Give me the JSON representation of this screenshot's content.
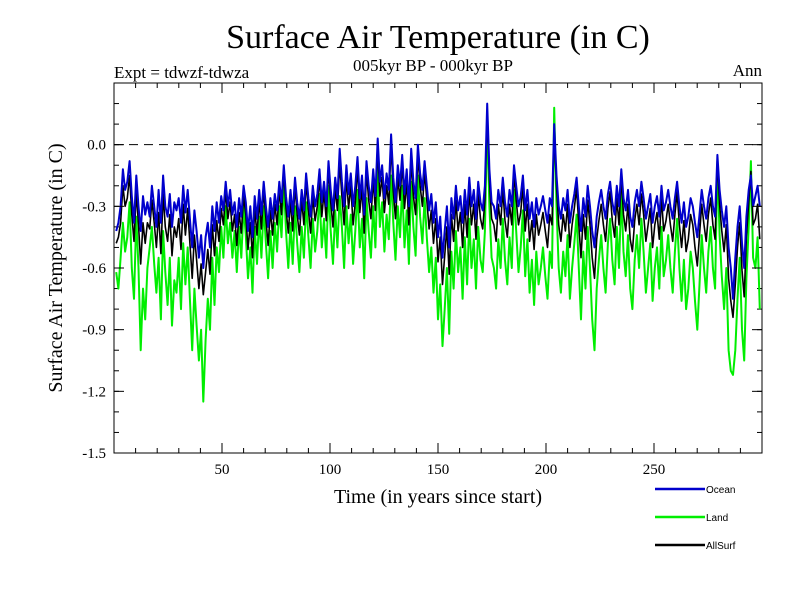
{
  "chart_data": {
    "type": "line",
    "title": "Surface Air Temperature (in C)",
    "subtitle": "005kyr BP - 000kyr BP",
    "left_label": "Expt = tdwzf-tdwza",
    "right_label": "Ann",
    "xlabel": "Time (in years since start)",
    "ylabel": "Surface Air Temperature (in C)",
    "xlim": [
      0,
      300
    ],
    "ylim": [
      -1.5,
      0.3
    ],
    "xticks": [
      50,
      100,
      150,
      200,
      250
    ],
    "yticks": [
      -1.5,
      -1.2,
      -0.9,
      -0.6,
      -0.3,
      0.0
    ],
    "ytick_labels": [
      "-1.5",
      "-1.2",
      "-0.9",
      "-0.6",
      "-0.3",
      "0.0"
    ],
    "reference_line": 0.0,
    "series": [
      {
        "name": "Ocean",
        "color": "#0000cc",
        "values": [
          -0.42,
          -0.38,
          -0.3,
          -0.12,
          -0.22,
          -0.18,
          -0.08,
          -0.25,
          -0.38,
          -0.15,
          -0.3,
          -0.42,
          -0.25,
          -0.34,
          -0.28,
          -0.35,
          -0.2,
          -0.3,
          -0.4,
          -0.22,
          -0.38,
          -0.15,
          -0.3,
          -0.35,
          -0.24,
          -0.4,
          -0.28,
          -0.32,
          -0.26,
          -0.38,
          -0.2,
          -0.33,
          -0.22,
          -0.36,
          -0.5,
          -0.32,
          -0.42,
          -0.55,
          -0.44,
          -0.6,
          -0.45,
          -0.38,
          -0.5,
          -0.3,
          -0.42,
          -0.28,
          -0.38,
          -0.25,
          -0.32,
          -0.18,
          -0.3,
          -0.22,
          -0.34,
          -0.28,
          -0.4,
          -0.26,
          -0.35,
          -0.2,
          -0.28,
          -0.42,
          -0.3,
          -0.45,
          -0.25,
          -0.36,
          -0.22,
          -0.34,
          -0.18,
          -0.3,
          -0.4,
          -0.26,
          -0.36,
          -0.24,
          -0.32,
          -0.18,
          -0.28,
          -0.1,
          -0.25,
          -0.35,
          -0.22,
          -0.34,
          -0.16,
          -0.28,
          -0.36,
          -0.22,
          -0.32,
          -0.14,
          -0.26,
          -0.35,
          -0.2,
          -0.3,
          -0.24,
          -0.12,
          -0.28,
          -0.18,
          -0.3,
          -0.08,
          -0.22,
          -0.32,
          -0.16,
          -0.26,
          -0.02,
          -0.18,
          -0.3,
          -0.1,
          -0.24,
          -0.14,
          -0.3,
          -0.2,
          -0.06,
          -0.26,
          -0.15,
          -0.34,
          -0.08,
          -0.2,
          -0.28,
          -0.12,
          -0.25,
          0.03,
          -0.18,
          -0.1,
          -0.26,
          -0.14,
          -0.22,
          0.05,
          -0.16,
          -0.28,
          -0.1,
          -0.2,
          -0.05,
          -0.24,
          -0.12,
          -0.3,
          -0.02,
          -0.18,
          -0.26,
          0.0,
          -0.14,
          -0.22,
          -0.08,
          -0.2,
          -0.32,
          -0.24,
          -0.38,
          -0.28,
          -0.45,
          -0.35,
          -0.55,
          -0.42,
          -0.3,
          -0.5,
          -0.26,
          -0.36,
          -0.2,
          -0.32,
          -0.25,
          -0.38,
          -0.22,
          -0.34,
          -0.16,
          -0.3,
          -0.22,
          -0.36,
          -0.18,
          -0.28,
          -0.32,
          -0.2,
          0.2,
          -0.12,
          -0.28,
          -0.3,
          -0.36,
          -0.22,
          -0.3,
          -0.16,
          -0.28,
          -0.35,
          -0.22,
          -0.3,
          -0.1,
          -0.2,
          -0.3,
          -0.25,
          -0.15,
          -0.32,
          -0.22,
          -0.36,
          -0.28,
          -0.4,
          -0.26,
          -0.34,
          -0.3,
          -0.25,
          -0.32,
          -0.38,
          -0.26,
          -0.3,
          0.1,
          -0.15,
          -0.3,
          -0.36,
          -0.26,
          -0.32,
          -0.22,
          -0.38,
          -0.3,
          -0.24,
          -0.16,
          -0.3,
          -0.42,
          -0.26,
          -0.35,
          -0.2,
          -0.3,
          -0.42,
          -0.5,
          -0.35,
          -0.28,
          -0.22,
          -0.3,
          -0.36,
          -0.24,
          -0.18,
          -0.28,
          -0.34,
          -0.2,
          -0.3,
          -0.12,
          -0.26,
          -0.32,
          -0.22,
          -0.35,
          -0.4,
          -0.28,
          -0.22,
          -0.3,
          -0.18,
          -0.26,
          -0.36,
          -0.3,
          -0.24,
          -0.38,
          -0.3,
          -0.25,
          -0.35,
          -0.2,
          -0.32,
          -0.28,
          -0.22,
          -0.3,
          -0.36,
          -0.26,
          -0.18,
          -0.3,
          -0.38,
          -0.28,
          -0.4,
          -0.35,
          -0.26,
          -0.3,
          -0.38,
          -0.45,
          -0.34,
          -0.22,
          -0.3,
          -0.36,
          -0.26,
          -0.2,
          -0.3,
          -0.35,
          -0.05,
          -0.22,
          -0.32,
          -0.4,
          -0.3,
          -0.5,
          -0.6,
          -0.75,
          -0.55,
          -0.4,
          -0.3,
          -0.48,
          -0.6,
          -0.35,
          -0.22,
          -0.15,
          -0.3,
          -0.25,
          -0.2,
          -0.3
        ]
      },
      {
        "name": "Land",
        "color": "#00ee00",
        "values": [
          -0.62,
          -0.7,
          -0.55,
          -0.38,
          -0.52,
          -0.45,
          -0.28,
          -0.6,
          -0.75,
          -0.35,
          -0.6,
          -1.0,
          -0.7,
          -0.85,
          -0.6,
          -0.5,
          -0.4,
          -0.58,
          -0.72,
          -0.55,
          -0.85,
          -0.42,
          -0.62,
          -0.78,
          -0.55,
          -0.88,
          -0.66,
          -0.72,
          -0.55,
          -0.8,
          -0.48,
          -0.68,
          -0.5,
          -0.75,
          -1.0,
          -0.7,
          -0.88,
          -1.05,
          -0.9,
          -1.25,
          -0.95,
          -0.75,
          -0.9,
          -0.55,
          -0.78,
          -0.5,
          -0.62,
          -0.4,
          -0.55,
          -0.3,
          -0.48,
          -0.38,
          -0.55,
          -0.42,
          -0.62,
          -0.4,
          -0.55,
          -0.3,
          -0.44,
          -0.65,
          -0.5,
          -0.72,
          -0.4,
          -0.58,
          -0.35,
          -0.55,
          -0.3,
          -0.48,
          -0.65,
          -0.42,
          -0.6,
          -0.38,
          -0.52,
          -0.3,
          -0.45,
          -0.18,
          -0.42,
          -0.6,
          -0.38,
          -0.58,
          -0.3,
          -0.48,
          -0.62,
          -0.4,
          -0.55,
          -0.28,
          -0.45,
          -0.6,
          -0.36,
          -0.52,
          -0.42,
          -0.24,
          -0.5,
          -0.36,
          -0.55,
          -0.2,
          -0.42,
          -0.58,
          -0.32,
          -0.5,
          -0.25,
          -0.4,
          -0.6,
          -0.3,
          -0.48,
          -0.34,
          -0.58,
          -0.42,
          -0.22,
          -0.5,
          -0.36,
          -0.65,
          -0.26,
          -0.42,
          -0.55,
          -0.3,
          -0.5,
          -0.12,
          -0.4,
          -0.28,
          -0.52,
          -0.34,
          -0.46,
          -0.15,
          -0.38,
          -0.56,
          -0.3,
          -0.45,
          -0.2,
          -0.5,
          -0.32,
          -0.58,
          -0.18,
          -0.4,
          -0.54,
          -0.15,
          -0.35,
          -0.48,
          -0.26,
          -0.45,
          -0.62,
          -0.5,
          -0.72,
          -0.55,
          -0.85,
          -0.68,
          -0.98,
          -0.8,
          -0.6,
          -0.92,
          -0.52,
          -0.7,
          -0.42,
          -0.62,
          -0.5,
          -0.75,
          -0.45,
          -0.68,
          -0.36,
          -0.6,
          -0.46,
          -0.7,
          -0.4,
          -0.56,
          -0.62,
          -0.42,
          0.12,
          -0.3,
          -0.55,
          -0.6,
          -0.7,
          -0.46,
          -0.6,
          -0.36,
          -0.56,
          -0.68,
          -0.45,
          -0.6,
          -0.22,
          -0.42,
          -0.62,
          -0.5,
          -0.32,
          -0.64,
          -0.46,
          -0.72,
          -0.56,
          -0.78,
          -0.52,
          -0.68,
          -0.6,
          -0.5,
          -0.64,
          -0.75,
          -0.52,
          -0.6,
          0.18,
          -0.3,
          -0.6,
          -0.72,
          -0.52,
          -0.64,
          -0.44,
          -0.75,
          -0.6,
          -0.48,
          -0.34,
          -0.6,
          -0.85,
          -0.52,
          -0.7,
          -0.4,
          -0.6,
          -0.85,
          -1.0,
          -0.7,
          -0.56,
          -0.44,
          -0.6,
          -0.72,
          -0.48,
          -0.36,
          -0.56,
          -0.68,
          -0.4,
          -0.6,
          -0.24,
          -0.52,
          -0.64,
          -0.44,
          -0.7,
          -0.8,
          -0.56,
          -0.44,
          -0.6,
          -0.36,
          -0.52,
          -0.72,
          -0.6,
          -0.48,
          -0.76,
          -0.6,
          -0.5,
          -0.7,
          -0.4,
          -0.64,
          -0.56,
          -0.44,
          -0.6,
          -0.72,
          -0.52,
          -0.36,
          -0.6,
          -0.76,
          -0.56,
          -0.8,
          -0.7,
          -0.52,
          -0.6,
          -0.76,
          -0.9,
          -0.68,
          -0.44,
          -0.6,
          -0.72,
          -0.52,
          -0.4,
          -0.6,
          -0.7,
          -0.08,
          -0.44,
          -0.64,
          -0.8,
          -0.6,
          -1.0,
          -1.1,
          -1.12,
          -1.0,
          -0.75,
          -0.55,
          -0.9,
          -1.05,
          -0.65,
          -0.4,
          -0.08,
          -0.55,
          -0.6,
          -0.45,
          -0.8
        ]
      },
      {
        "name": "AllSurf",
        "color": "#000000",
        "values": [
          -0.48,
          -0.45,
          -0.38,
          -0.2,
          -0.3,
          -0.26,
          -0.15,
          -0.34,
          -0.47,
          -0.23,
          -0.39,
          -0.58,
          -0.38,
          -0.48,
          -0.38,
          -0.41,
          -0.27,
          -0.38,
          -0.5,
          -0.33,
          -0.53,
          -0.24,
          -0.4,
          -0.47,
          -0.34,
          -0.54,
          -0.4,
          -0.45,
          -0.36,
          -0.51,
          -0.29,
          -0.44,
          -0.31,
          -0.48,
          -0.65,
          -0.44,
          -0.56,
          -0.7,
          -0.58,
          -0.73,
          -0.62,
          -0.51,
          -0.63,
          -0.39,
          -0.54,
          -0.37,
          -0.47,
          -0.31,
          -0.39,
          -0.22,
          -0.36,
          -0.28,
          -0.42,
          -0.34,
          -0.49,
          -0.33,
          -0.43,
          -0.25,
          -0.34,
          -0.51,
          -0.38,
          -0.55,
          -0.31,
          -0.44,
          -0.27,
          -0.41,
          -0.22,
          -0.36,
          -0.49,
          -0.32,
          -0.44,
          -0.29,
          -0.39,
          -0.22,
          -0.34,
          -0.13,
          -0.31,
          -0.43,
          -0.27,
          -0.42,
          -0.2,
          -0.34,
          -0.44,
          -0.27,
          -0.39,
          -0.18,
          -0.32,
          -0.43,
          -0.25,
          -0.37,
          -0.3,
          -0.16,
          -0.35,
          -0.23,
          -0.37,
          -0.11,
          -0.28,
          -0.4,
          -0.21,
          -0.32,
          -0.09,
          -0.25,
          -0.39,
          -0.16,
          -0.31,
          -0.2,
          -0.39,
          -0.28,
          -0.11,
          -0.33,
          -0.21,
          -0.43,
          -0.13,
          -0.27,
          -0.36,
          -0.17,
          -0.32,
          -0.02,
          -0.25,
          -0.16,
          -0.33,
          -0.2,
          -0.29,
          0.0,
          -0.23,
          -0.36,
          -0.16,
          -0.27,
          -0.09,
          -0.31,
          -0.18,
          -0.39,
          -0.07,
          -0.25,
          -0.34,
          -0.05,
          -0.2,
          -0.3,
          -0.13,
          -0.27,
          -0.41,
          -0.32,
          -0.48,
          -0.36,
          -0.57,
          -0.45,
          -0.68,
          -0.54,
          -0.4,
          -0.63,
          -0.34,
          -0.47,
          -0.27,
          -0.42,
          -0.33,
          -0.5,
          -0.29,
          -0.45,
          -0.22,
          -0.39,
          -0.29,
          -0.46,
          -0.24,
          -0.36,
          -0.41,
          -0.27,
          0.15,
          -0.17,
          -0.36,
          -0.39,
          -0.47,
          -0.29,
          -0.39,
          -0.22,
          -0.37,
          -0.45,
          -0.29,
          -0.39,
          -0.14,
          -0.27,
          -0.39,
          -0.33,
          -0.2,
          -0.42,
          -0.29,
          -0.47,
          -0.37,
          -0.51,
          -0.34,
          -0.44,
          -0.39,
          -0.33,
          -0.42,
          -0.5,
          -0.34,
          -0.39,
          0.07,
          -0.2,
          -0.39,
          -0.47,
          -0.34,
          -0.42,
          -0.29,
          -0.5,
          -0.39,
          -0.31,
          -0.21,
          -0.39,
          -0.55,
          -0.34,
          -0.46,
          -0.27,
          -0.39,
          -0.55,
          -0.65,
          -0.46,
          -0.37,
          -0.29,
          -0.39,
          -0.47,
          -0.31,
          -0.23,
          -0.37,
          -0.45,
          -0.26,
          -0.39,
          -0.16,
          -0.34,
          -0.42,
          -0.29,
          -0.46,
          -0.52,
          -0.37,
          -0.29,
          -0.39,
          -0.24,
          -0.34,
          -0.47,
          -0.39,
          -0.31,
          -0.5,
          -0.39,
          -0.33,
          -0.46,
          -0.26,
          -0.42,
          -0.37,
          -0.29,
          -0.39,
          -0.47,
          -0.34,
          -0.23,
          -0.39,
          -0.5,
          -0.37,
          -0.52,
          -0.46,
          -0.34,
          -0.39,
          -0.5,
          -0.59,
          -0.44,
          -0.29,
          -0.39,
          -0.47,
          -0.34,
          -0.26,
          -0.39,
          -0.46,
          -0.07,
          -0.29,
          -0.42,
          -0.52,
          -0.39,
          -0.65,
          -0.76,
          -0.84,
          -0.68,
          -0.5,
          -0.38,
          -0.61,
          -0.74,
          -0.45,
          -0.28,
          -0.13,
          -0.39,
          -0.36,
          -0.29,
          -0.46
        ]
      }
    ]
  }
}
